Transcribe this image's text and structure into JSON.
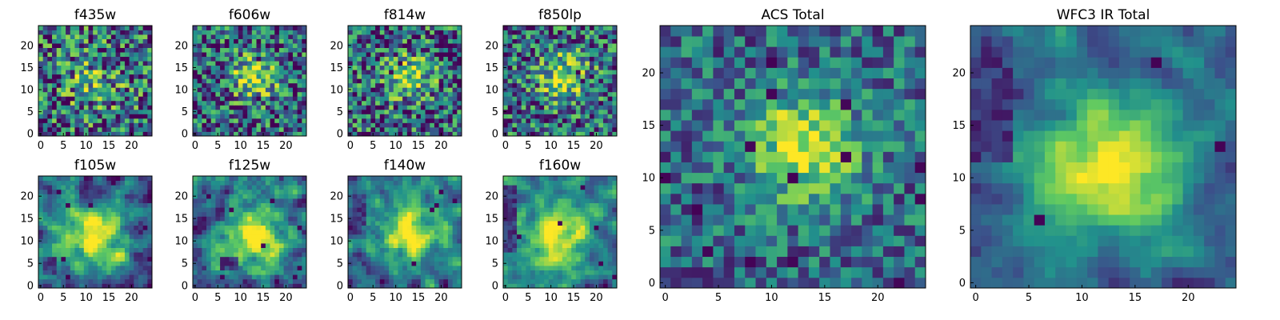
{
  "figure": {
    "grid_size": 25,
    "colormap": "viridis",
    "colormap_stops": [
      "#440154",
      "#3b528b",
      "#21918c",
      "#5ec962",
      "#fde725"
    ]
  },
  "chart_data": [
    {
      "type": "heatmap",
      "title": "f435w",
      "xticks": [
        "0",
        "5",
        "10",
        "15",
        "20"
      ],
      "yticks": [
        "0",
        "5",
        "10",
        "15",
        "20"
      ],
      "xlim": [
        0,
        25
      ],
      "ylim": [
        0,
        25
      ],
      "seed": 11,
      "noise": 0.95,
      "peak": 0.25,
      "cx": 12,
      "cy": 12,
      "sigma": 5,
      "smooth": 0,
      "dark_spots": 18,
      "dark_region": null
    },
    {
      "type": "heatmap",
      "title": "f606w",
      "xticks": [
        "0",
        "5",
        "10",
        "15",
        "20"
      ],
      "yticks": [
        "0",
        "5",
        "10",
        "15",
        "20"
      ],
      "xlim": [
        0,
        25
      ],
      "ylim": [
        0,
        25
      ],
      "seed": 23,
      "noise": 0.85,
      "peak": 0.55,
      "cx": 13,
      "cy": 13,
      "sigma": 3.5,
      "smooth": 0,
      "dark_spots": 14,
      "dark_region": null
    },
    {
      "type": "heatmap",
      "title": "f814w",
      "xticks": [
        "0",
        "5",
        "10",
        "15",
        "20"
      ],
      "yticks": [
        "0",
        "5",
        "10",
        "15",
        "20"
      ],
      "xlim": [
        0,
        25
      ],
      "ylim": [
        0,
        25
      ],
      "seed": 37,
      "noise": 0.9,
      "peak": 0.5,
      "cx": 13,
      "cy": 13,
      "sigma": 3.5,
      "smooth": 0,
      "dark_spots": 16,
      "dark_region": null
    },
    {
      "type": "heatmap",
      "title": "f850lp",
      "xticks": [
        "0",
        "5",
        "10",
        "15",
        "20"
      ],
      "yticks": [
        "0",
        "5",
        "10",
        "15",
        "20"
      ],
      "xlim": [
        0,
        25
      ],
      "ylim": [
        0,
        25
      ],
      "seed": 41,
      "noise": 0.85,
      "peak": 0.5,
      "cx": 13,
      "cy": 13,
      "sigma": 4,
      "smooth": 0,
      "dark_spots": 16,
      "dark_region": null
    },
    {
      "type": "heatmap",
      "title": "f105w",
      "xticks": [
        "0",
        "5",
        "10",
        "15",
        "20"
      ],
      "yticks": [
        "0",
        "5",
        "10",
        "15",
        "20"
      ],
      "xlim": [
        0,
        25
      ],
      "ylim": [
        0,
        25
      ],
      "seed": 53,
      "noise": 0.8,
      "peak": 0.65,
      "cx": 12,
      "cy": 11,
      "sigma": 4.5,
      "smooth": 1,
      "dark_spots": 8,
      "dark_region": [
        1,
        3,
        3,
        6
      ]
    },
    {
      "type": "heatmap",
      "title": "f125w",
      "xticks": [
        "0",
        "5",
        "10",
        "15",
        "20"
      ],
      "yticks": [
        "0",
        "5",
        "10",
        "15",
        "20"
      ],
      "xlim": [
        0,
        25
      ],
      "ylim": [
        0,
        25
      ],
      "seed": 67,
      "noise": 0.8,
      "peak": 0.65,
      "cx": 13,
      "cy": 11,
      "sigma": 4.5,
      "smooth": 1,
      "dark_spots": 8,
      "dark_region": [
        6,
        9,
        4,
        6
      ]
    },
    {
      "type": "heatmap",
      "title": "f140w",
      "xticks": [
        "0",
        "5",
        "10",
        "15",
        "20"
      ],
      "yticks": [
        "0",
        "5",
        "10",
        "15",
        "20"
      ],
      "xlim": [
        0,
        25
      ],
      "ylim": [
        0,
        25
      ],
      "seed": 79,
      "noise": 0.8,
      "peak": 0.65,
      "cx": 13,
      "cy": 12,
      "sigma": 4.5,
      "smooth": 1,
      "dark_spots": 6,
      "dark_region": [
        1,
        3,
        14,
        20
      ]
    },
    {
      "type": "heatmap",
      "title": "f160w",
      "xticks": [
        "0",
        "5",
        "10",
        "15",
        "20"
      ],
      "yticks": [
        "0",
        "5",
        "10",
        "15",
        "20"
      ],
      "xlim": [
        0,
        25
      ],
      "ylim": [
        0,
        25
      ],
      "seed": 83,
      "noise": 0.8,
      "peak": 0.7,
      "cx": 12,
      "cy": 11,
      "sigma": 4.5,
      "smooth": 1,
      "dark_spots": 6,
      "dark_region": [
        0,
        2,
        8,
        22
      ]
    },
    {
      "type": "heatmap",
      "title": "ACS Total",
      "xticks": [
        "0",
        "5",
        "10",
        "15",
        "20"
      ],
      "yticks": [
        "0",
        "5",
        "10",
        "15",
        "20"
      ],
      "xlim": [
        0,
        25
      ],
      "ylim": [
        0,
        25
      ],
      "seed": 97,
      "noise": 0.55,
      "peak": 0.6,
      "cx": 13,
      "cy": 13,
      "sigma": 3.5,
      "smooth": 0,
      "dark_spots": 14,
      "dark_region": null
    },
    {
      "type": "heatmap",
      "title": "WFC3 IR Total",
      "xticks": [
        "0",
        "5",
        "10",
        "15",
        "20"
      ],
      "yticks": [
        "0",
        "5",
        "10",
        "15",
        "20"
      ],
      "xlim": [
        0,
        25
      ],
      "ylim": [
        0,
        25
      ],
      "seed": 101,
      "noise": 0.5,
      "peak": 0.75,
      "cx": 13,
      "cy": 11,
      "sigma": 4.5,
      "smooth": 1,
      "dark_spots": 3,
      "dark_region": [
        0,
        3,
        12,
        23
      ]
    }
  ]
}
